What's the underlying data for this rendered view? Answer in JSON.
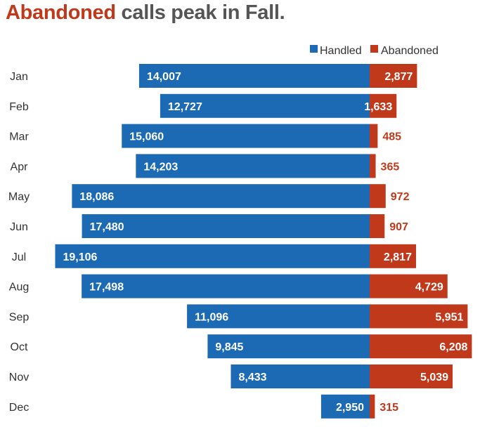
{
  "title": {
    "highlight": "Abandoned",
    "rest": " calls peak in Fall."
  },
  "colors": {
    "handled": "#1b6ab3",
    "abandoned": "#c0391b",
    "title_text": "#555555",
    "label_text": "#333333"
  },
  "chart_data": {
    "type": "bar",
    "orientation": "horizontal-diverging",
    "title": "Abandoned calls peak in Fall.",
    "categories": [
      "Jan",
      "Feb",
      "Mar",
      "Apr",
      "May",
      "Jun",
      "Jul",
      "Aug",
      "Sep",
      "Oct",
      "Nov",
      "Dec"
    ],
    "series": [
      {
        "name": "Handled",
        "color": "#1b6ab3",
        "values": [
          14007,
          12727,
          15060,
          14203,
          18086,
          17480,
          19106,
          17498,
          11096,
          9845,
          8433,
          2950
        ]
      },
      {
        "name": "Abandoned",
        "color": "#c0391b",
        "values": [
          2877,
          1633,
          485,
          365,
          972,
          907,
          2817,
          4729,
          5951,
          6208,
          5039,
          315
        ]
      }
    ],
    "legend": "top-right",
    "grid": false
  }
}
